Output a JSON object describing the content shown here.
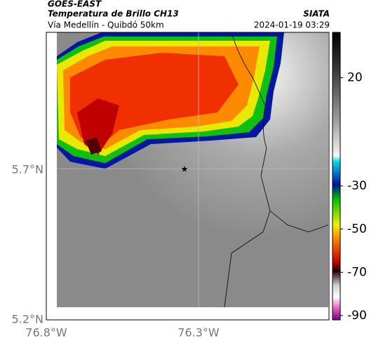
{
  "header": {
    "title": "GOES-EAST",
    "subtitle": "Temperatura de Brillo CH13",
    "source": "SIATA",
    "caption": "Vía Medellín - Quibdó 50km",
    "datetime": "2024-01-19 03:29"
  },
  "map": {
    "lat_labels": [
      "5.7°N",
      "5.2°N"
    ],
    "lon_labels": [
      "76.8°W",
      "76.3°W"
    ]
  },
  "colorbar": {
    "range": [
      -92,
      41
    ],
    "ticks": [
      20,
      -30,
      -50,
      -70,
      -90
    ]
  }
}
